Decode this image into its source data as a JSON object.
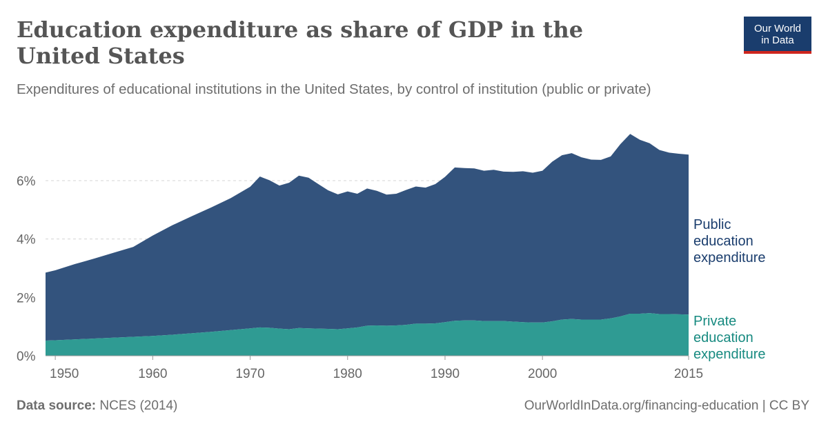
{
  "header": {
    "title": "Education expenditure as share of GDP in the United States",
    "subtitle": "Expenditures of educational institutions in the United States, by control of institution (public or private)"
  },
  "logo": {
    "line1": "Our World",
    "line2": "in Data",
    "bg_color": "#1a3d6d",
    "accent_color": "#ce261e"
  },
  "footer": {
    "source_label": "Data source:",
    "source_text": "NCES (2014)",
    "url_text": "OurWorldInData.org/financing-education | CC BY"
  },
  "chart_data": {
    "type": "area",
    "stacked": true,
    "xlim": [
      1949,
      2015
    ],
    "ylim": [
      0,
      7.7
    ],
    "x_ticks": [
      1950,
      1960,
      1970,
      1980,
      1990,
      2000,
      2015
    ],
    "y_ticks": [
      {
        "value": 0,
        "label": "0%"
      },
      {
        "value": 2,
        "label": "2%"
      },
      {
        "value": 4,
        "label": "4%"
      },
      {
        "value": 6,
        "label": "6%"
      }
    ],
    "grid": "horizontal dashed",
    "series_names": [
      "Public education expenditure",
      "Private education expenditure"
    ],
    "series": [
      {
        "name": "Private education expenditure",
        "color": "#2f9b93",
        "points": [
          [
            1949,
            0.52
          ],
          [
            1950,
            0.53
          ],
          [
            1952,
            0.56
          ],
          [
            1954,
            0.59
          ],
          [
            1956,
            0.62
          ],
          [
            1958,
            0.65
          ],
          [
            1960,
            0.68
          ],
          [
            1962,
            0.72
          ],
          [
            1964,
            0.77
          ],
          [
            1966,
            0.82
          ],
          [
            1968,
            0.88
          ],
          [
            1970,
            0.94
          ],
          [
            1971,
            0.97
          ],
          [
            1972,
            0.96
          ],
          [
            1973,
            0.93
          ],
          [
            1974,
            0.91
          ],
          [
            1975,
            0.95
          ],
          [
            1976,
            0.94
          ],
          [
            1977,
            0.93
          ],
          [
            1978,
            0.92
          ],
          [
            1979,
            0.91
          ],
          [
            1980,
            0.94
          ],
          [
            1981,
            0.97
          ],
          [
            1982,
            1.03
          ],
          [
            1983,
            1.04
          ],
          [
            1984,
            1.03
          ],
          [
            1985,
            1.04
          ],
          [
            1986,
            1.06
          ],
          [
            1987,
            1.1
          ],
          [
            1988,
            1.1
          ],
          [
            1989,
            1.11
          ],
          [
            1990,
            1.15
          ],
          [
            1991,
            1.2
          ],
          [
            1992,
            1.21
          ],
          [
            1993,
            1.21
          ],
          [
            1994,
            1.19
          ],
          [
            1995,
            1.19
          ],
          [
            1996,
            1.19
          ],
          [
            1997,
            1.17
          ],
          [
            1998,
            1.15
          ],
          [
            1999,
            1.14
          ],
          [
            2000,
            1.14
          ],
          [
            2001,
            1.18
          ],
          [
            2002,
            1.24
          ],
          [
            2003,
            1.26
          ],
          [
            2004,
            1.24
          ],
          [
            2005,
            1.24
          ],
          [
            2006,
            1.24
          ],
          [
            2007,
            1.28
          ],
          [
            2008,
            1.35
          ],
          [
            2009,
            1.44
          ],
          [
            2010,
            1.44
          ],
          [
            2011,
            1.46
          ],
          [
            2012,
            1.43
          ],
          [
            2013,
            1.43
          ],
          [
            2014,
            1.42
          ],
          [
            2015,
            1.41
          ]
        ]
      },
      {
        "name": "Public education expenditure",
        "color": "#33537d",
        "points": [
          [
            1949,
            2.33
          ],
          [
            1950,
            2.4
          ],
          [
            1952,
            2.58
          ],
          [
            1954,
            2.74
          ],
          [
            1956,
            2.91
          ],
          [
            1958,
            3.08
          ],
          [
            1960,
            3.44
          ],
          [
            1962,
            3.75
          ],
          [
            1964,
            4.01
          ],
          [
            1966,
            4.26
          ],
          [
            1968,
            4.52
          ],
          [
            1970,
            4.85
          ],
          [
            1971,
            5.17
          ],
          [
            1972,
            5.05
          ],
          [
            1973,
            4.9
          ],
          [
            1974,
            5.02
          ],
          [
            1975,
            5.22
          ],
          [
            1976,
            5.16
          ],
          [
            1977,
            4.95
          ],
          [
            1978,
            4.75
          ],
          [
            1979,
            4.62
          ],
          [
            1980,
            4.69
          ],
          [
            1981,
            4.58
          ],
          [
            1982,
            4.7
          ],
          [
            1983,
            4.61
          ],
          [
            1984,
            4.49
          ],
          [
            1985,
            4.51
          ],
          [
            1986,
            4.62
          ],
          [
            1987,
            4.7
          ],
          [
            1988,
            4.66
          ],
          [
            1989,
            4.77
          ],
          [
            1990,
            4.98
          ],
          [
            1991,
            5.25
          ],
          [
            1992,
            5.22
          ],
          [
            1993,
            5.21
          ],
          [
            1994,
            5.15
          ],
          [
            1995,
            5.18
          ],
          [
            1996,
            5.12
          ],
          [
            1997,
            5.13
          ],
          [
            1998,
            5.17
          ],
          [
            1999,
            5.13
          ],
          [
            2000,
            5.2
          ],
          [
            2001,
            5.47
          ],
          [
            2002,
            5.63
          ],
          [
            2003,
            5.68
          ],
          [
            2004,
            5.56
          ],
          [
            2005,
            5.48
          ],
          [
            2006,
            5.47
          ],
          [
            2007,
            5.55
          ],
          [
            2008,
            5.9
          ],
          [
            2009,
            6.16
          ],
          [
            2010,
            5.96
          ],
          [
            2011,
            5.82
          ],
          [
            2012,
            5.62
          ],
          [
            2013,
            5.53
          ],
          [
            2014,
            5.5
          ],
          [
            2015,
            5.48
          ]
        ]
      }
    ]
  }
}
